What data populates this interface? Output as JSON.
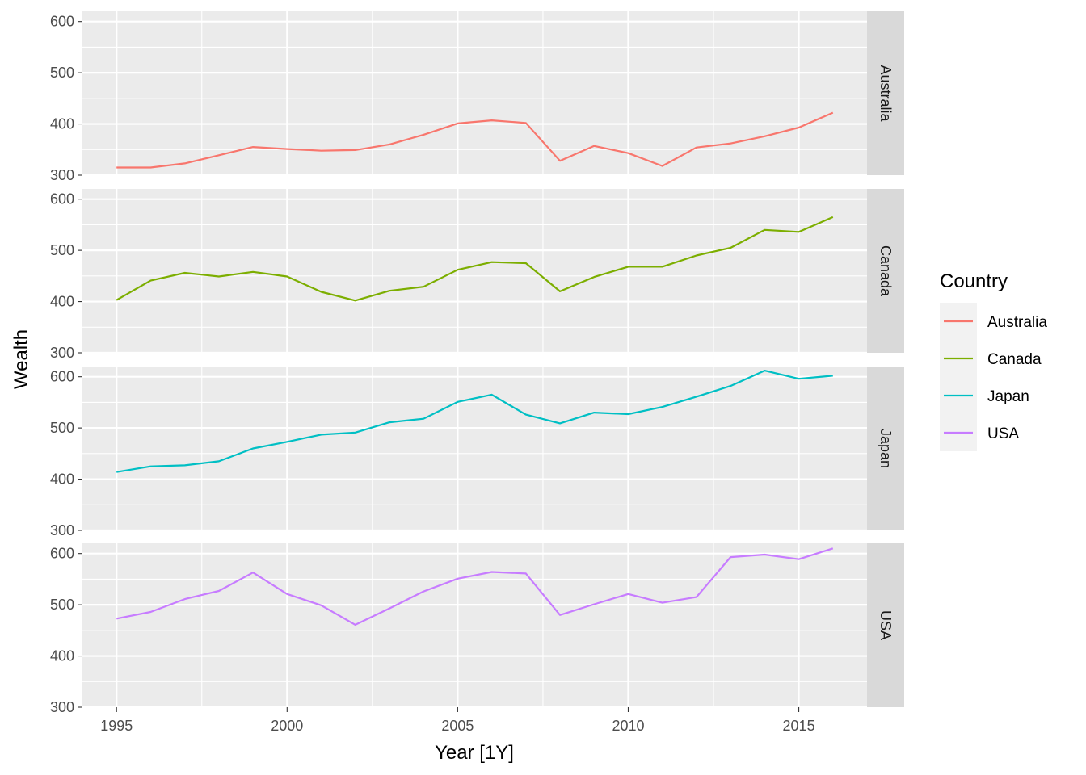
{
  "chart_data": {
    "type": "line",
    "facet_layout": "rows",
    "xlabel": "Year [1Y]",
    "ylabel": "Wealth",
    "xlim": [
      1994,
      2017
    ],
    "ylim": [
      300,
      620
    ],
    "x_ticks": [
      1995,
      2000,
      2005,
      2010,
      2015
    ],
    "y_ticks": [
      300,
      400,
      500,
      600
    ],
    "grid": true,
    "legend": {
      "title": "Country",
      "placement": "right",
      "entries": [
        "Australia",
        "Canada",
        "Japan",
        "USA"
      ]
    },
    "x": [
      1995,
      1996,
      1997,
      1998,
      1999,
      2000,
      2001,
      2002,
      2003,
      2004,
      2005,
      2006,
      2007,
      2008,
      2009,
      2010,
      2011,
      2012,
      2013,
      2014,
      2015,
      2016
    ],
    "series": [
      {
        "name": "Australia",
        "color": "#F8766D",
        "values": [
          315,
          315,
          323,
          339,
          355,
          351,
          348,
          349,
          360,
          379,
          401,
          407,
          402,
          328,
          357,
          343,
          318,
          354,
          362,
          376,
          393,
          422
        ]
      },
      {
        "name": "Canada",
        "color": "#7CAE00",
        "values": [
          403,
          441,
          456,
          449,
          458,
          449,
          419,
          402,
          421,
          429,
          462,
          477,
          475,
          420,
          448,
          468,
          468,
          490,
          505,
          540,
          536,
          565
        ]
      },
      {
        "name": "Japan",
        "color": "#00BFC4",
        "values": [
          414,
          425,
          427,
          435,
          460,
          473,
          487,
          491,
          511,
          518,
          551,
          565,
          526,
          509,
          530,
          527,
          541,
          561,
          582,
          612,
          596,
          602
        ]
      },
      {
        "name": "USA",
        "color": "#C77CFF",
        "values": [
          473,
          486,
          511,
          527,
          563,
          521,
          499,
          461,
          493,
          526,
          551,
          564,
          561,
          480,
          501,
          521,
          504,
          515,
          593,
          598,
          589,
          610
        ]
      }
    ]
  }
}
